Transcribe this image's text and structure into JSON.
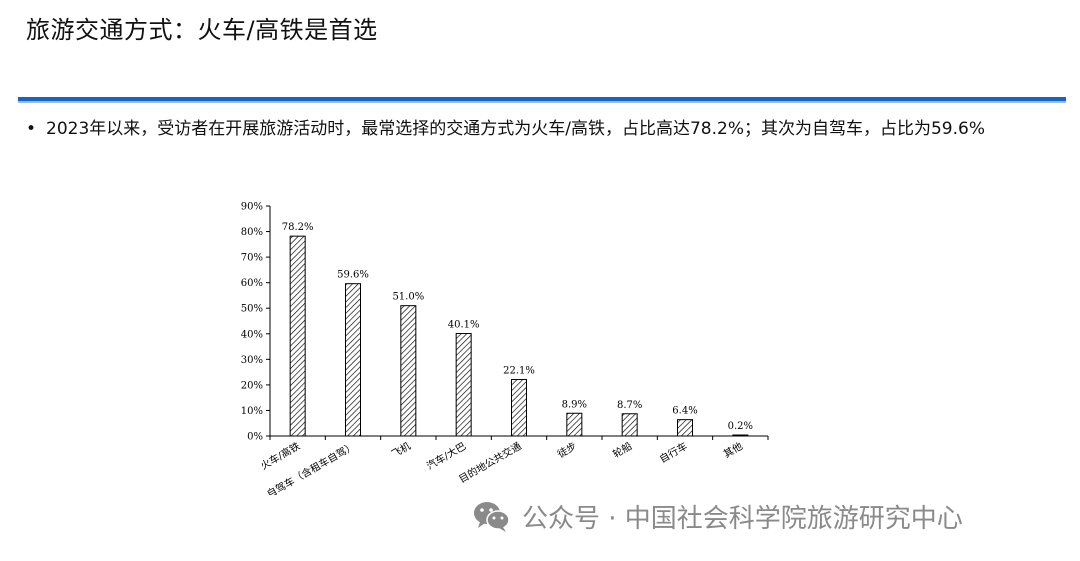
{
  "page": {
    "title": "旅游交通方式：火车/高铁是首选",
    "bullet": "2023年以来，受访者在开展旅游活动时，最常选择的交通方式为火车/高铁，占比高达78.2%；其次为自驾车，占比为59.6%",
    "bullet_symbol": "•",
    "accent_color": "#1565c8"
  },
  "watermark": {
    "text": "公众号 · 中国社会科学院旅游研究中心",
    "icon": "wechat-icon"
  },
  "chart_data": {
    "type": "bar",
    "categories": [
      "火车/高铁",
      "自驾车（含租车自驾）",
      "飞机",
      "汽车/大巴",
      "目的地公共交通",
      "徒步",
      "轮船",
      "自行车",
      "其他"
    ],
    "values": [
      78.2,
      59.6,
      51.0,
      40.1,
      22.1,
      8.9,
      8.7,
      6.4,
      0.2
    ],
    "value_labels": [
      "78.2%",
      "59.6%",
      "51.0%",
      "40.1%",
      "22.1%",
      "8.9%",
      "8.7%",
      "6.4%",
      "0.2%"
    ],
    "yticks": [
      "0%",
      "10%",
      "20%",
      "30%",
      "40%",
      "50%",
      "60%",
      "70%",
      "80%",
      "90%"
    ],
    "ylim": [
      0,
      90
    ],
    "title": "",
    "xlabel": "",
    "ylabel": "",
    "bar_fill": "diagonal hatch",
    "grid": false,
    "legend": "none"
  }
}
